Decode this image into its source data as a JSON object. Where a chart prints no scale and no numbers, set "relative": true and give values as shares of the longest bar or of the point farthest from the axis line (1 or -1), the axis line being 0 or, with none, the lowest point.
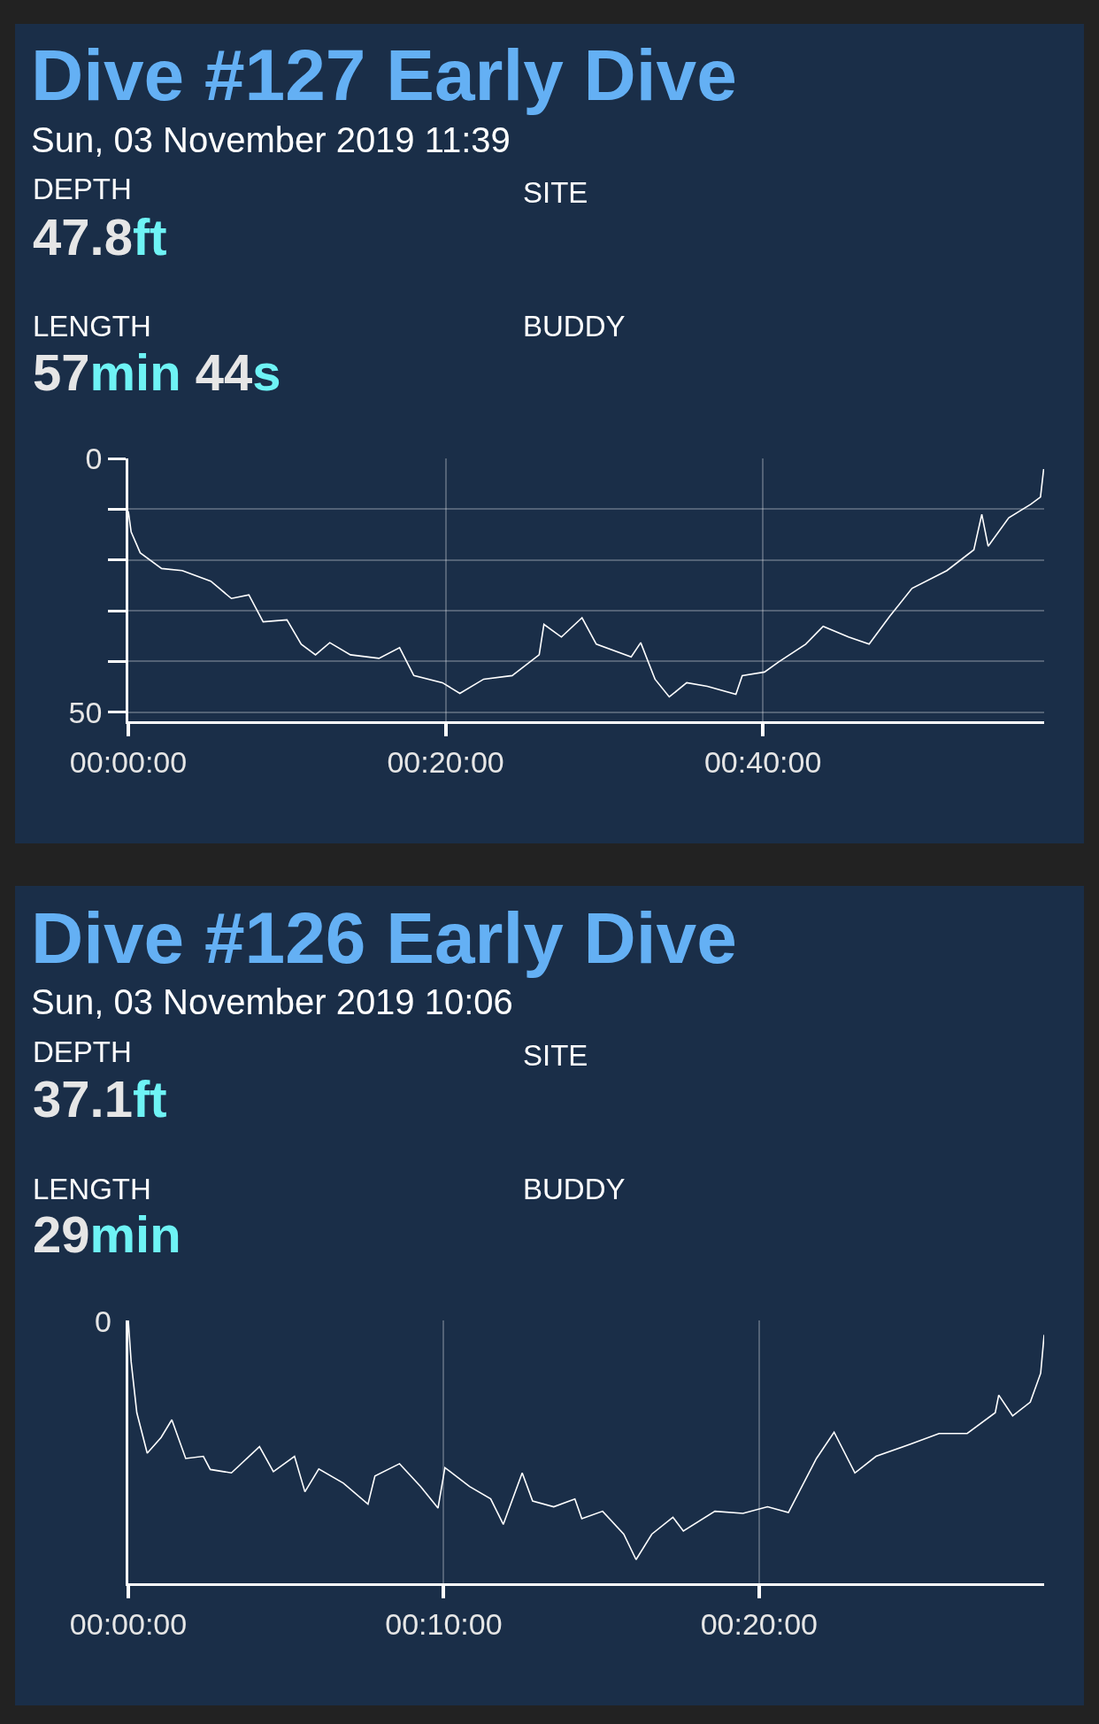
{
  "chart_data": [
    {
      "type": "line",
      "title": "Dive #127 Early Dive",
      "subtitle": "Sun, 03 November 2019 11:39",
      "annotations": [
        "DEPTH",
        "47.8ft",
        "SITE",
        "LENGTH",
        "57min 44s",
        "BUDDY"
      ],
      "x": [
        0,
        0.18,
        0.75,
        2.1,
        3.4,
        5.2,
        6.5,
        7.6,
        8.5,
        10.0,
        10.9,
        11.8,
        12.7,
        14.0,
        15.8,
        17.1,
        18.0,
        19.8,
        20.9,
        22.4,
        24.2,
        25.9,
        26.2,
        27.3,
        28.6,
        29.5,
        31.7,
        32.3,
        33.2,
        34.1,
        35.2,
        36.5,
        38.3,
        38.7,
        40.1,
        41.0,
        42.7,
        43.8,
        45.4,
        46.7,
        48.0,
        49.4,
        51.6,
        53.3,
        53.8,
        54.2,
        55.5,
        56.9,
        57.5,
        57.7
      ],
      "series": [
        {
          "color": "#ffffff",
          "values": [
            10.4,
            14.5,
            18.6,
            21.7,
            22.1,
            24.2,
            27.6,
            26.9,
            32.2,
            31.8,
            36.6,
            38.7,
            36.3,
            38.7,
            39.4,
            37.3,
            42.8,
            44.2,
            46.3,
            43.5,
            42.8,
            38.7,
            32.7,
            35.2,
            31.4,
            36.6,
            39.1,
            36.3,
            43.5,
            47.0,
            44.2,
            44.9,
            46.5,
            42.8,
            42.1,
            40.1,
            36.6,
            33.1,
            35.2,
            36.6,
            31.1,
            25.6,
            22.1,
            18.0,
            11.0,
            17.3,
            11.7,
            9.0,
            7.6,
            2.1
          ]
        }
      ],
      "xlim": [
        0,
        57.73
      ],
      "xticks": [
        {
          "value": 0,
          "label": "00:00:00"
        },
        {
          "value": 20,
          "label": "00:20:00"
        },
        {
          "value": 40,
          "label": "00:40:00"
        }
      ],
      "ylim": [
        51.8,
        0
      ],
      "yticks": [
        0,
        {
          "value": 10,
          "label": null
        },
        {
          "value": 20,
          "label": null
        },
        {
          "value": 30,
          "label": null
        },
        {
          "value": 40,
          "label": null
        },
        50
      ],
      "grid": true,
      "marker": "none"
    },
    {
      "type": "line",
      "title": "Dive #126 Early Dive",
      "subtitle": "Sun, 03 November 2019 10:06",
      "annotations": [
        "DEPTH",
        "37.1ft",
        "SITE",
        "LENGTH",
        "29min",
        "BUDDY",
        "0"
      ],
      "relative": true,
      "x": [
        0,
        0.09,
        0.27,
        0.6,
        1.04,
        1.38,
        1.82,
        2.38,
        2.6,
        3.27,
        4.16,
        4.6,
        5.27,
        5.6,
        6.04,
        6.82,
        7.6,
        7.82,
        8.6,
        9.27,
        9.82,
        10.04,
        10.82,
        11.49,
        11.89,
        12.49,
        12.82,
        13.49,
        14.16,
        14.38,
        15.04,
        15.71,
        16.1,
        16.6,
        17.27,
        17.6,
        18.6,
        19.49,
        20.27,
        20.93,
        21.82,
        22.38,
        23.04,
        23.71,
        24.82,
        25.71,
        26.6,
        27.49,
        27.6,
        28.04,
        28.6,
        28.93,
        29.04
      ],
      "series": [
        {
          "color": "#ffffff",
          "values": [
            1.0,
            0.843,
            0.649,
            0.495,
            0.555,
            0.622,
            0.475,
            0.483,
            0.433,
            0.42,
            0.52,
            0.425,
            0.483,
            0.348,
            0.435,
            0.381,
            0.301,
            0.408,
            0.455,
            0.368,
            0.286,
            0.44,
            0.368,
            0.321,
            0.224,
            0.42,
            0.313,
            0.291,
            0.321,
            0.246,
            0.274,
            0.187,
            0.09,
            0.187,
            0.251,
            0.199,
            0.274,
            0.266,
            0.291,
            0.269,
            0.475,
            0.575,
            0.42,
            0.483,
            0.53,
            0.57,
            0.57,
            0.649,
            0.716,
            0.637,
            0.689,
            0.799,
            0.945
          ]
        }
      ],
      "xlim": [
        0,
        29.04
      ],
      "xticks": [
        {
          "value": 0,
          "label": "00:00:00"
        },
        {
          "value": 10,
          "label": "00:10:00"
        },
        {
          "value": 20,
          "label": "00:20:00"
        }
      ],
      "grid": "x",
      "marker": "none"
    }
  ]
}
